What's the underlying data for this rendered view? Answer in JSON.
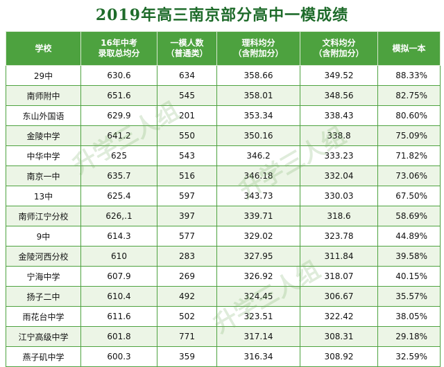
{
  "title": "2019年高三南京部分高中一模成绩",
  "headers": {
    "school": "学校",
    "score_line1": "16年中考",
    "score_line2": "录取总均分",
    "count_line1": "一模人数",
    "count_line2": "（普通类）",
    "sci_line1": "理科均分",
    "sci_line2": "（含附加分）",
    "arts_line1": "文科均分",
    "arts_line2": "（含附加分）",
    "rate": "模拟一本"
  },
  "rows": [
    {
      "school": "29中",
      "score": "630.6",
      "count": "634",
      "sci": "358.66",
      "arts": "349.52",
      "rate": "88.33%"
    },
    {
      "school": "南师附中",
      "score": "651.6",
      "count": "545",
      "sci": "358.01",
      "arts": "348.56",
      "rate": "82.75%"
    },
    {
      "school": "东山外国语",
      "score": "629.9",
      "count": "201",
      "sci": "353.34",
      "arts": "338.43",
      "rate": "80.60%"
    },
    {
      "school": "金陵中学",
      "score": "641.2",
      "count": "550",
      "sci": "350.16",
      "arts": "338.8",
      "rate": "75.09%"
    },
    {
      "school": "中华中学",
      "score": "625",
      "count": "543",
      "sci": "346.2",
      "arts": "333.23",
      "rate": "71.82%"
    },
    {
      "school": "南京一中",
      "score": "635.7",
      "count": "516",
      "sci": "346.18",
      "arts": "332.04",
      "rate": "73.06%"
    },
    {
      "school": "13中",
      "score": "625.4",
      "count": "597",
      "sci": "343.73",
      "arts": "330.03",
      "rate": "67.50%"
    },
    {
      "school": "南师江宁分校",
      "score": "626,.1",
      "count": "397",
      "sci": "339.71",
      "arts": "318.6",
      "rate": "58.69%"
    },
    {
      "school": "9中",
      "score": "614.3",
      "count": "577",
      "sci": "329.02",
      "arts": "323.78",
      "rate": "44.89%"
    },
    {
      "school": "金陵河西分校",
      "score": "610",
      "count": "283",
      "sci": "327.95",
      "arts": "311.84",
      "rate": "39.58%"
    },
    {
      "school": "宁海中学",
      "score": "607.9",
      "count": "269",
      "sci": "326.92",
      "arts": "318.07",
      "rate": "40.15%"
    },
    {
      "school": "扬子二中",
      "score": "610.4",
      "count": "492",
      "sci": "324.45",
      "arts": "306.67",
      "rate": "35.57%"
    },
    {
      "school": "雨花台中学",
      "score": "611.6",
      "count": "502",
      "sci": "323.51",
      "arts": "322.42",
      "rate": "38.05%"
    },
    {
      "school": "江宁高级中学",
      "score": "601.8",
      "count": "771",
      "sci": "317.14",
      "arts": "308.31",
      "rate": "29.18%"
    },
    {
      "school": "燕子矶中学",
      "score": "600.3",
      "count": "359",
      "sci": "316.34",
      "arts": "308.92",
      "rate": "32.59%"
    }
  ],
  "watermark": "升学三人组"
}
